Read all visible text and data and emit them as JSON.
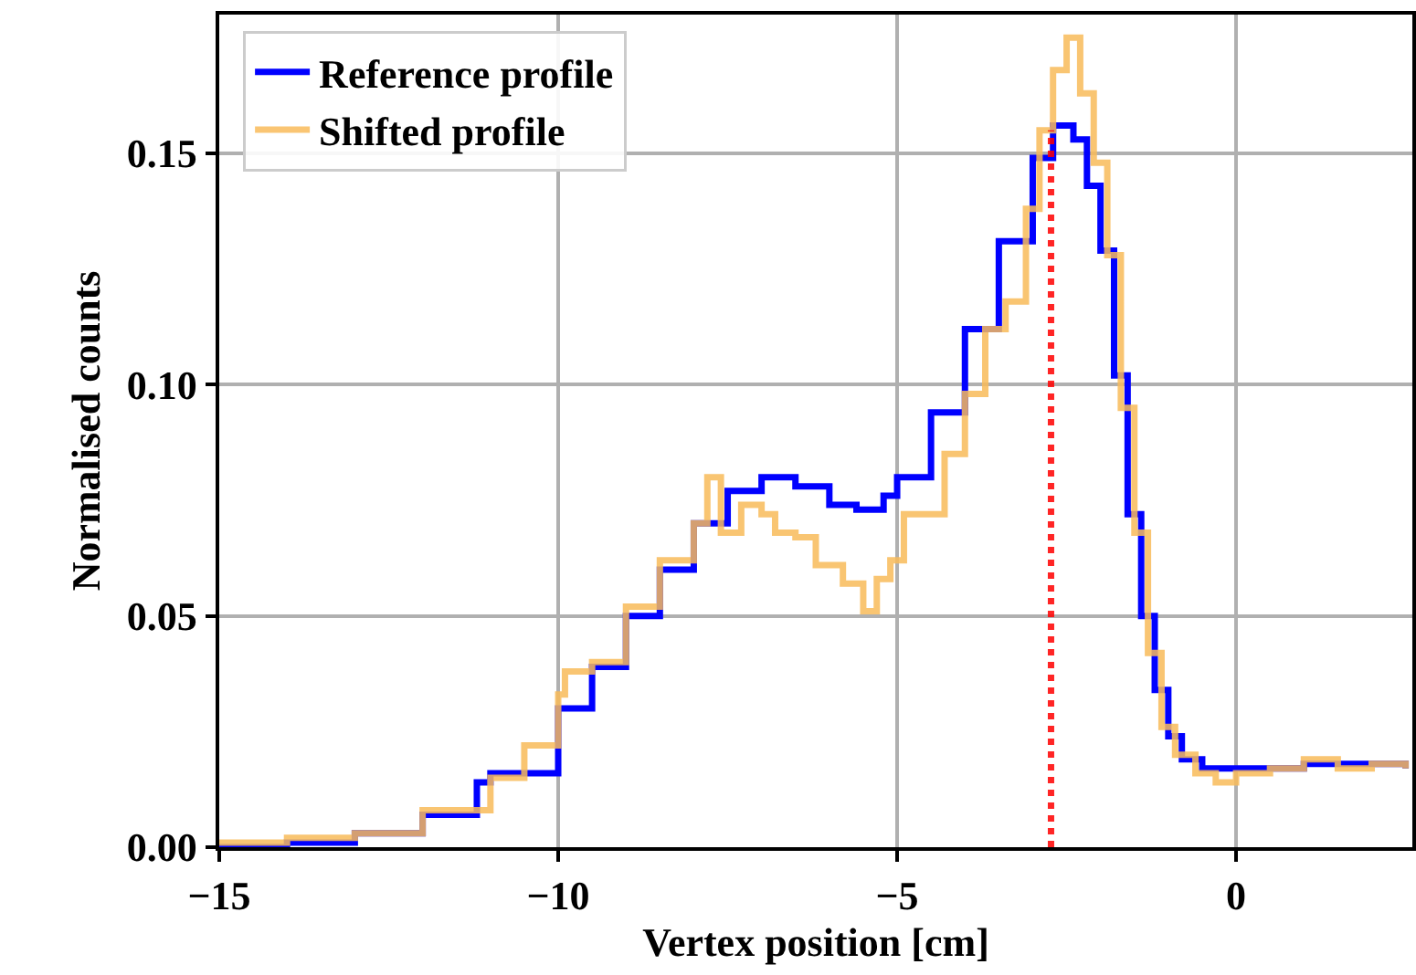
{
  "chart_data": {
    "type": "step",
    "xlabel": "Vertex position [cm]",
    "ylabel": "Normalised counts",
    "xlim": [
      -15,
      2.6
    ],
    "ylim": [
      0,
      0.18
    ],
    "xticks": [
      {
        "value": -15,
        "label": "−15"
      },
      {
        "value": -10,
        "label": "−10"
      },
      {
        "value": -5,
        "label": "−5"
      },
      0
    ],
    "yticks": [
      {
        "value": 0,
        "label": "0.00"
      },
      {
        "value": 0.05,
        "label": "0.05"
      },
      {
        "value": 0.1,
        "label": "0.10"
      },
      {
        "value": 0.15,
        "label": "0.15"
      }
    ],
    "grid": true,
    "legend": "top left",
    "series": [
      {
        "name": "Reference profile",
        "color": "#0000ff",
        "x": [
          -15,
          -14,
          -13,
          -12,
          -11.2,
          -11,
          -10,
          -9.5,
          -9,
          -8.5,
          -8,
          -7.5,
          -7,
          -6.5,
          -6,
          -5.6,
          -5.2,
          -5,
          -4.5,
          -4,
          -3.5,
          -3,
          -2.7,
          -2.4,
          -2.2,
          -2,
          -1.8,
          -1.6,
          -1.4,
          -1.2,
          -1,
          -0.8,
          -0.5,
          0,
          1,
          2,
          2.5
        ],
        "values": [
          0,
          0.001,
          0.003,
          0.007,
          0.014,
          0.016,
          0.03,
          0.039,
          0.05,
          0.06,
          0.07,
          0.077,
          0.08,
          0.078,
          0.074,
          0.073,
          0.076,
          0.08,
          0.094,
          0.112,
          0.131,
          0.149,
          0.156,
          0.153,
          0.143,
          0.129,
          0.102,
          0.072,
          0.05,
          0.034,
          0.024,
          0.019,
          0.017,
          0.017,
          0.018,
          0.018,
          0.017
        ]
      },
      {
        "name": "Shifted profile",
        "color": "#f9bb5a",
        "x": [
          -15,
          -14,
          -13,
          -12,
          -11,
          -10.5,
          -10,
          -9.9,
          -9.5,
          -9,
          -8.5,
          -8,
          -7.8,
          -7.6,
          -7.3,
          -7,
          -6.8,
          -6.5,
          -6.2,
          -5.8,
          -5.5,
          -5.3,
          -5.1,
          -4.9,
          -4.6,
          -4.3,
          -4,
          -3.7,
          -3.4,
          -3.1,
          -2.9,
          -2.7,
          -2.5,
          -2.3,
          -2.1,
          -1.9,
          -1.7,
          -1.5,
          -1.3,
          -1.1,
          -0.9,
          -0.6,
          -0.3,
          0,
          0.5,
          1,
          1.5,
          2,
          2.5
        ],
        "values": [
          0.001,
          0.002,
          0.003,
          0.008,
          0.015,
          0.022,
          0.033,
          0.038,
          0.04,
          0.052,
          0.062,
          0.07,
          0.08,
          0.068,
          0.074,
          0.072,
          0.068,
          0.067,
          0.061,
          0.057,
          0.051,
          0.058,
          0.062,
          0.072,
          0.072,
          0.085,
          0.098,
          0.112,
          0.118,
          0.138,
          0.155,
          0.168,
          0.175,
          0.163,
          0.148,
          0.128,
          0.095,
          0.068,
          0.042,
          0.026,
          0.02,
          0.016,
          0.014,
          0.016,
          0.017,
          0.019,
          0.017,
          0.018,
          0.017
        ]
      },
      {
        "type": "line",
        "line_style": "dotted",
        "color": "#ff0000",
        "x": [
          -2.73,
          -2.73
        ],
        "values": [
          0,
          0.155
        ]
      }
    ]
  }
}
